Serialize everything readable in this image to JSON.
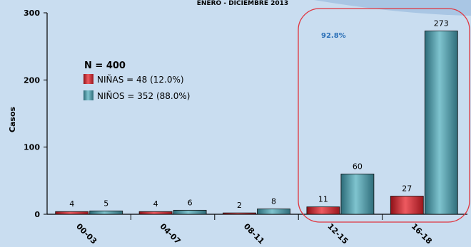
{
  "chart_data": {
    "type": "bar",
    "title": "ENERO - DICIEMBRE 2013",
    "xlabel": "",
    "ylabel": "Casos",
    "ylim": [
      0,
      300
    ],
    "yticks": [
      "0",
      "100",
      "200",
      "300"
    ],
    "categories": [
      "00-03",
      "04-07",
      "08-11",
      "12-15",
      "16-18"
    ],
    "series": [
      {
        "name": "NIÑAS",
        "values": [
          4,
          4,
          2,
          11,
          27
        ],
        "color": "#c8232c"
      },
      {
        "name": "NIÑOS",
        "values": [
          5,
          6,
          8,
          60,
          273
        ],
        "color": "#3f8a99"
      }
    ],
    "legend": {
      "title": "N = 400",
      "entries": [
        "NIÑAS = 48 (12.0%)",
        "NIÑOS = 352 (88.0%)"
      ],
      "position": "left"
    },
    "annotation": {
      "text": "92.8%",
      "color": "#2a6fb7",
      "highlight_color": "#e0353f"
    }
  }
}
